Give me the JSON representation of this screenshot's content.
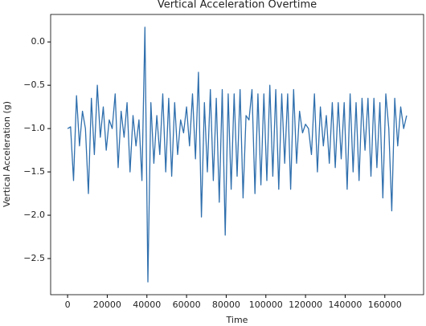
{
  "chart_data": {
    "type": "line",
    "title": "Vertical Acceleration Overtime",
    "x_label": "Time",
    "y_label": "Vertical Acceleration (g)",
    "x": [
      0,
      1500,
      3000,
      4500,
      6000,
      7500,
      9000,
      10500,
      12000,
      13500,
      15000,
      16500,
      18000,
      19500,
      21000,
      22500,
      24000,
      25500,
      27000,
      28500,
      30000,
      31500,
      33000,
      34500,
      36000,
      37500,
      39000,
      40500,
      42000,
      43500,
      45000,
      46500,
      48000,
      49500,
      51000,
      52500,
      54000,
      55500,
      57000,
      58500,
      60000,
      61500,
      63000,
      64500,
      66000,
      67500,
      69000,
      70500,
      72000,
      73500,
      75000,
      76500,
      78000,
      79500,
      81000,
      82500,
      84000,
      85500,
      87000,
      88500,
      90000,
      91500,
      93000,
      94500,
      96000,
      97500,
      99000,
      100500,
      102000,
      103500,
      105000,
      106500,
      108000,
      109500,
      111000,
      112500,
      114000,
      115500,
      117000,
      118500,
      120000,
      121500,
      123000,
      124500,
      126000,
      127500,
      129000,
      130500,
      132000,
      133500,
      135000,
      136500,
      138000,
      139500,
      141000,
      142500,
      144000,
      145500,
      147000,
      148500,
      150000,
      151500,
      153000,
      154500,
      156000,
      157500,
      159000,
      160500,
      162000,
      163500,
      165000,
      166500,
      168000,
      169500,
      171000
    ],
    "series": [
      {
        "name": "Vertical Acceleration",
        "color": "#2f6fad",
        "values": [
          -1.0,
          -0.98,
          -1.6,
          -0.62,
          -1.2,
          -0.8,
          -1.0,
          -1.75,
          -0.65,
          -1.3,
          -0.5,
          -1.1,
          -0.75,
          -1.25,
          -0.9,
          -1.0,
          -0.6,
          -1.45,
          -0.8,
          -1.1,
          -0.7,
          -1.5,
          -0.85,
          -1.2,
          -0.9,
          -1.6,
          0.17,
          -2.77,
          -0.7,
          -1.4,
          -0.85,
          -1.3,
          -0.6,
          -1.5,
          -0.65,
          -1.55,
          -0.7,
          -1.3,
          -0.9,
          -1.05,
          -0.75,
          -1.2,
          -0.6,
          -1.35,
          -0.35,
          -2.02,
          -0.7,
          -1.5,
          -0.55,
          -1.6,
          -0.65,
          -1.85,
          -0.55,
          -2.23,
          -0.6,
          -1.7,
          -0.6,
          -1.55,
          -0.55,
          -1.8,
          -0.85,
          -0.9,
          -0.55,
          -1.75,
          -0.6,
          -1.65,
          -0.6,
          -1.6,
          -0.5,
          -1.55,
          -0.55,
          -1.7,
          -0.6,
          -1.4,
          -0.6,
          -1.7,
          -0.55,
          -1.4,
          -0.8,
          -1.05,
          -0.95,
          -1.0,
          -1.3,
          -0.6,
          -1.5,
          -0.75,
          -1.2,
          -0.85,
          -1.4,
          -0.7,
          -1.45,
          -0.7,
          -1.35,
          -0.7,
          -1.7,
          -0.6,
          -1.5,
          -0.7,
          -1.6,
          -0.65,
          -1.25,
          -0.65,
          -1.55,
          -0.65,
          -1.45,
          -0.7,
          -1.8,
          -0.6,
          -1.0,
          -1.95,
          -0.65,
          -1.2,
          -0.75,
          -1.0,
          -0.85
        ]
      }
    ],
    "xlim": [
      -8550,
      179550
    ],
    "ylim": [
      -2.917,
      0.317
    ],
    "xticks": [
      0,
      20000,
      40000,
      60000,
      80000,
      100000,
      120000,
      140000,
      160000
    ],
    "yticks": [
      {
        "value": 0,
        "label": "0.0"
      },
      {
        "value": -0.5,
        "label": "−0.5"
      },
      {
        "value": -1.0,
        "label": "−1.0"
      },
      {
        "value": -1.5,
        "label": "−1.5"
      },
      {
        "value": -2.0,
        "label": "−2.0"
      },
      {
        "value": -2.5,
        "label": "−2.5"
      }
    ],
    "grid": false
  }
}
